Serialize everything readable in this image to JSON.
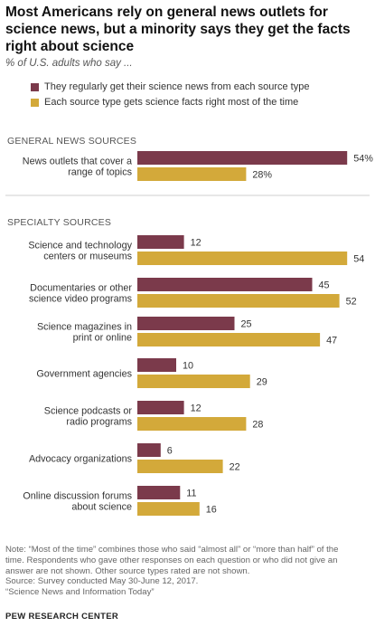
{
  "title": "Most Americans rely on general news outlets for science news, but a minority says they get the facts right about science",
  "subtitle": "% of U.S. adults who say ...",
  "colors": {
    "regularly": "#7b3a4b",
    "facts_right": "#d3a93a"
  },
  "legend": [
    "They regularly get their science news from each source type",
    "Each source type gets science facts right most of the time"
  ],
  "sections": {
    "general": "GENERAL NEWS SOURCES",
    "specialty": "SPECIALTY SOURCES"
  },
  "chart_data": {
    "type": "bar",
    "orientation": "horizontal",
    "series": [
      {
        "name": "They regularly get their science news from each source type",
        "color": "#7b3a4b"
      },
      {
        "name": "Each source type gets science facts right most of the time",
        "color": "#d3a93a"
      }
    ],
    "groups": [
      {
        "section": "GENERAL NEWS SOURCES",
        "categories": [
          {
            "label": [
              "News outlets that cover a",
              "range of topics"
            ],
            "values": [
              54,
              28
            ],
            "display": [
              "54%",
              "28%"
            ]
          }
        ]
      },
      {
        "section": "SPECIALTY SOURCES",
        "categories": [
          {
            "label": [
              "Science and technology",
              "centers or museums"
            ],
            "values": [
              12,
              54
            ],
            "display": [
              "12",
              "54"
            ]
          },
          {
            "label": [
              "Documentaries or other",
              "science video programs"
            ],
            "values": [
              45,
              52
            ],
            "display": [
              "45",
              "52"
            ]
          },
          {
            "label": [
              "Science magazines in",
              "print or online"
            ],
            "values": [
              25,
              47
            ],
            "display": [
              "25",
              "47"
            ]
          },
          {
            "label": [
              "Government agencies"
            ],
            "values": [
              10,
              29
            ],
            "display": [
              "10",
              "29"
            ]
          },
          {
            "label": [
              "Science podcasts or",
              "radio programs"
            ],
            "values": [
              12,
              28
            ],
            "display": [
              "12",
              "28"
            ]
          },
          {
            "label": [
              "Advocacy organizations"
            ],
            "values": [
              6,
              22
            ],
            "display": [
              "6",
              "22"
            ]
          },
          {
            "label": [
              "Online discussion forums",
              "about science"
            ],
            "values": [
              11,
              16
            ],
            "display": [
              "11",
              "16"
            ]
          }
        ]
      }
    ]
  },
  "notes": [
    "Note: “Most of the time” combines those who said “almost all” or “more than half” of the",
    "time. Respondents who gave other responses on each question or who did not give an",
    "answer are not shown. Other source types rated are not shown.",
    "Source: Survey conducted May 30-June 12, 2017.",
    "“Science News and Information Today”"
  ],
  "brand": "PEW RESEARCH CENTER"
}
